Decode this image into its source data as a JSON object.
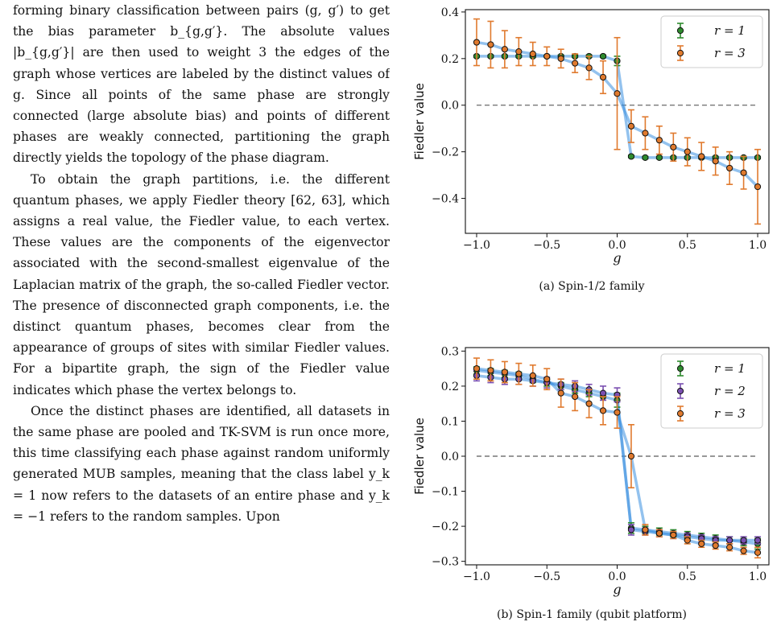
{
  "text": {
    "p1": "forming binary classification between pairs (g, g′) to get the bias parameter b_{g,g′}. The absolute values |b_{g,g′}| are then used to weight 3 the edges of the graph whose vertices are labeled by the distinct values of g. Since all points of the same phase are strongly connected (large absolute bias) and points of different phases are weakly connected, partitioning the graph directly yields the topology of the phase diagram.",
    "p2": "To obtain the graph partitions, i.e. the different quantum phases, we apply Fiedler theory [62, 63], which assigns a real value, the Fiedler value, to each vertex. These values are the components of the eigenvector associated with the second-smallest eigenvalue of the Laplacian matrix of the graph, the so-called Fiedler vector. The presence of disconnected graph components, i.e. the distinct quantum phases, becomes clear from the appearance of groups of sites with similar Fiedler values. For a bipartite graph, the sign of the Fiedler value indicates which phase the vertex belongs to.",
    "p3": "Once the distinct phases are identified, all datasets in the same phase are pooled and TK-SVM is run once more, this time classifying each phase against random uniformly generated MUB samples, meaning that the class label y_k = 1 now refers to the datasets of an entire phase and y_k = −1 refers to the random samples. Upon"
  },
  "chart_data": [
    {
      "type": "scatter",
      "caption": "(a) Spin-1/2 family",
      "xlabel": "g",
      "ylabel": "Fiedler value",
      "xlim": [
        -1.08,
        1.08
      ],
      "ylim": [
        -0.55,
        0.41
      ],
      "xticks": [
        -1.0,
        -0.5,
        0.0,
        0.5,
        1.0
      ],
      "xtick_labels": [
        "−1.0",
        "−0.5",
        "0.0",
        "0.5",
        "1.0"
      ],
      "yticks": [
        -0.4,
        -0.2,
        0.0,
        0.2,
        0.4
      ],
      "ytick_labels": [
        "−0.4",
        "−0.2",
        "0.0",
        "0.2",
        "0.4"
      ],
      "legend_position": "top-right",
      "series": [
        {
          "name": "r = 1",
          "color": "#2e8b2e",
          "x": [
            -1.0,
            -0.9,
            -0.8,
            -0.7,
            -0.6,
            -0.5,
            -0.4,
            -0.3,
            -0.2,
            -0.1,
            0.0,
            0.1,
            0.2,
            0.3,
            0.4,
            0.5,
            0.6,
            0.7,
            0.8,
            0.9,
            1.0
          ],
          "y": [
            0.21,
            0.21,
            0.21,
            0.21,
            0.21,
            0.21,
            0.21,
            0.21,
            0.21,
            0.21,
            0.19,
            -0.22,
            -0.225,
            -0.225,
            -0.225,
            -0.225,
            -0.225,
            -0.225,
            -0.225,
            -0.225,
            -0.225
          ],
          "err": [
            0.005,
            0.005,
            0.005,
            0.005,
            0.005,
            0.005,
            0.005,
            0.005,
            0.005,
            0.005,
            0.02,
            0.005,
            0.005,
            0.005,
            0.005,
            0.005,
            0.005,
            0.005,
            0.005,
            0.005,
            0.005
          ]
        },
        {
          "name": "r = 3",
          "color": "#e07a2e",
          "x": [
            -1.0,
            -0.9,
            -0.8,
            -0.7,
            -0.6,
            -0.5,
            -0.4,
            -0.3,
            -0.2,
            -0.1,
            0.0,
            0.1,
            0.2,
            0.3,
            0.4,
            0.5,
            0.6,
            0.7,
            0.8,
            0.9,
            1.0
          ],
          "y": [
            0.27,
            0.26,
            0.24,
            0.23,
            0.22,
            0.21,
            0.2,
            0.18,
            0.16,
            0.12,
            0.05,
            -0.09,
            -0.12,
            -0.15,
            -0.18,
            -0.2,
            -0.22,
            -0.24,
            -0.27,
            -0.29,
            -0.35
          ],
          "err": [
            0.1,
            0.1,
            0.08,
            0.06,
            0.05,
            0.04,
            0.04,
            0.04,
            0.05,
            0.07,
            0.24,
            0.07,
            0.07,
            0.06,
            0.06,
            0.06,
            0.06,
            0.06,
            0.07,
            0.07,
            0.16
          ]
        }
      ]
    },
    {
      "type": "scatter",
      "caption": "(b) Spin-1 family (qubit platform)",
      "xlabel": "g",
      "ylabel": "Fiedler value",
      "xlim": [
        -1.08,
        1.08
      ],
      "ylim": [
        -0.31,
        0.31
      ],
      "xticks": [
        -1.0,
        -0.5,
        0.0,
        0.5,
        1.0
      ],
      "xtick_labels": [
        "−1.0",
        "−0.5",
        "0.0",
        "0.5",
        "1.0"
      ],
      "yticks": [
        -0.3,
        -0.2,
        -0.1,
        0.0,
        0.1,
        0.2,
        0.3
      ],
      "ytick_labels": [
        "−0.3",
        "−0.2",
        "−0.1",
        "0.0",
        "0.1",
        "0.2",
        "0.3"
      ],
      "legend_position": "top-right",
      "series": [
        {
          "name": "r = 1",
          "color": "#2e8b2e",
          "x": [
            -1.0,
            -0.9,
            -0.8,
            -0.7,
            -0.6,
            -0.5,
            -0.4,
            -0.3,
            -0.2,
            -0.1,
            0.0,
            0.1,
            0.2,
            0.3,
            0.4,
            0.5,
            0.6,
            0.7,
            0.8,
            0.9,
            1.0
          ],
          "y": [
            0.245,
            0.24,
            0.235,
            0.23,
            0.22,
            0.21,
            0.2,
            0.19,
            0.18,
            0.17,
            0.16,
            -0.205,
            -0.21,
            -0.215,
            -0.22,
            -0.225,
            -0.23,
            -0.235,
            -0.24,
            -0.245,
            -0.25
          ],
          "err": [
            0.01,
            0.01,
            0.01,
            0.01,
            0.01,
            0.01,
            0.01,
            0.01,
            0.01,
            0.01,
            0.02,
            0.015,
            0.01,
            0.01,
            0.01,
            0.01,
            0.01,
            0.01,
            0.01,
            0.01,
            0.015
          ]
        },
        {
          "name": "r = 2",
          "color": "#7a4fb0",
          "x": [
            -1.0,
            -0.9,
            -0.8,
            -0.7,
            -0.6,
            -0.5,
            -0.4,
            -0.3,
            -0.2,
            -0.1,
            0.0,
            0.1,
            0.2,
            0.3,
            0.4,
            0.5,
            0.6,
            0.7,
            0.8,
            0.9,
            1.0
          ],
          "y": [
            0.23,
            0.225,
            0.22,
            0.22,
            0.215,
            0.21,
            0.205,
            0.2,
            0.19,
            0.18,
            0.175,
            -0.21,
            -0.215,
            -0.22,
            -0.225,
            -0.23,
            -0.235,
            -0.24,
            -0.24,
            -0.24,
            -0.24
          ],
          "err": [
            0.015,
            0.015,
            0.015,
            0.015,
            0.015,
            0.015,
            0.015,
            0.015,
            0.015,
            0.02,
            0.02,
            0.015,
            0.01,
            0.01,
            0.01,
            0.01,
            0.01,
            0.01,
            0.01,
            0.01,
            0.01
          ]
        },
        {
          "name": "r = 3",
          "color": "#e07a2e",
          "x": [
            -1.0,
            -0.9,
            -0.8,
            -0.7,
            -0.6,
            -0.5,
            -0.4,
            -0.3,
            -0.2,
            -0.1,
            0.0,
            0.1,
            0.2,
            0.3,
            0.4,
            0.5,
            0.6,
            0.7,
            0.8,
            0.9,
            1.0
          ],
          "y": [
            0.25,
            0.245,
            0.24,
            0.235,
            0.23,
            0.22,
            0.18,
            0.17,
            0.15,
            0.13,
            0.125,
            0.0,
            -0.21,
            -0.22,
            -0.225,
            -0.24,
            -0.25,
            -0.255,
            -0.26,
            -0.27,
            -0.275
          ],
          "err": [
            0.03,
            0.03,
            0.03,
            0.03,
            0.03,
            0.03,
            0.04,
            0.04,
            0.04,
            0.04,
            0.045,
            0.09,
            0.015,
            0.01,
            0.01,
            0.01,
            0.01,
            0.01,
            0.01,
            0.01,
            0.015
          ]
        }
      ]
    }
  ]
}
